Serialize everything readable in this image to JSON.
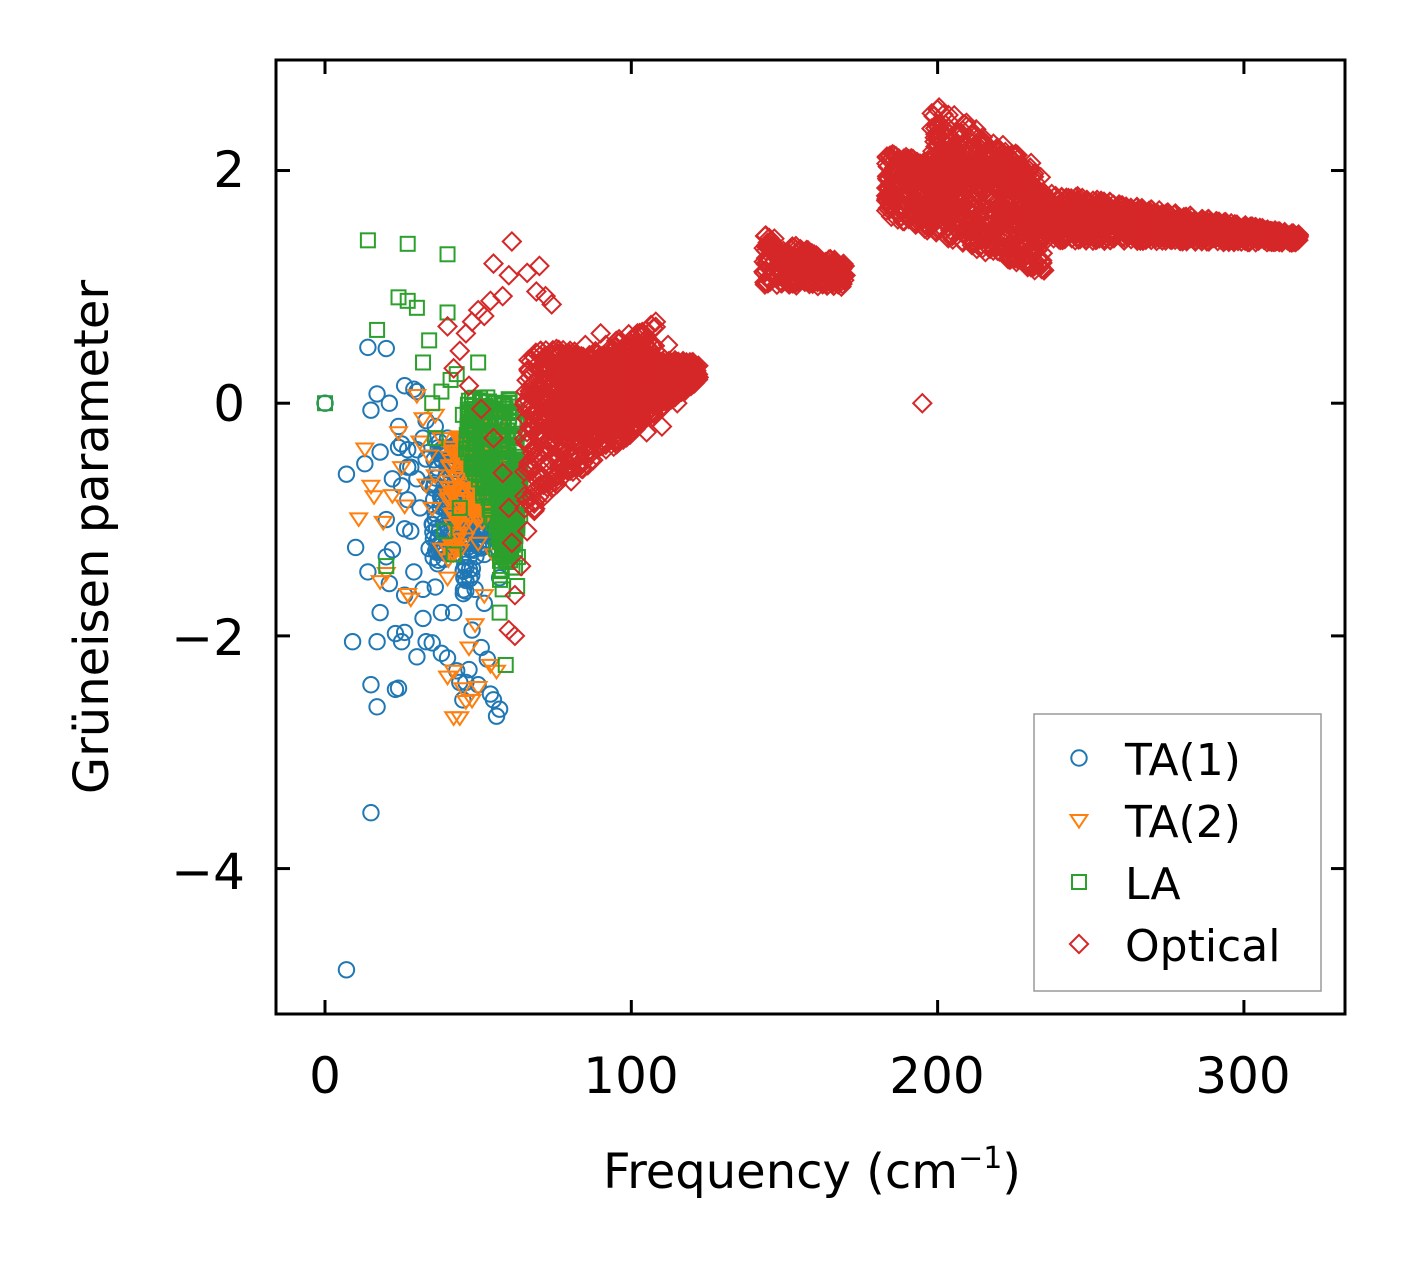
{
  "chart_data": {
    "type": "scatter",
    "title": "",
    "xlabel": "Frequency (cm",
    "xlabel_sup": "−1",
    "xlabel_suffix": ")",
    "ylabel": "Grüneisen parameter",
    "xlim": [
      -16,
      333
    ],
    "ylim": [
      -5.25,
      2.95
    ],
    "xticks": [
      0,
      100,
      200,
      300
    ],
    "xtick_labels": [
      "0",
      "100",
      "200",
      "300"
    ],
    "yticks": [
      -4,
      -2,
      0,
      2
    ],
    "ytick_labels": [
      "−4",
      "−2",
      "0",
      "2"
    ],
    "grid": false,
    "legend_position": "lower-right",
    "series": [
      {
        "name": "TA(1)",
        "color": "#1f77b4",
        "marker": "circle",
        "points": [
          [
            0,
            0
          ],
          [
            7,
            -4.87
          ],
          [
            15,
            -3.52
          ],
          [
            9,
            -2.05
          ],
          [
            15,
            -2.42
          ],
          [
            17,
            -2.61
          ],
          [
            23,
            -2.46
          ],
          [
            24,
            -2.45
          ],
          [
            7,
            -0.61
          ],
          [
            10,
            -1.24
          ],
          [
            14,
            -1.45
          ],
          [
            13,
            -0.52
          ],
          [
            15,
            -0.06
          ],
          [
            17,
            0.08
          ],
          [
            20,
            0.47
          ],
          [
            14,
            0.48
          ],
          [
            18,
            -0.42
          ],
          [
            22,
            -1.26
          ],
          [
            20,
            -1.32
          ],
          [
            17,
            -2.05
          ],
          [
            23,
            -1.98
          ],
          [
            25,
            -2.05
          ],
          [
            26,
            -1.97
          ],
          [
            21,
            -1.55
          ],
          [
            25,
            -0.71
          ],
          [
            27,
            -0.55
          ],
          [
            26,
            0.15
          ],
          [
            29,
            0.12
          ],
          [
            24,
            -0.38
          ],
          [
            27,
            -0.83
          ],
          [
            26,
            -1.08
          ],
          [
            25,
            -0.35
          ],
          [
            28,
            -0.55
          ],
          [
            26,
            -1.65
          ],
          [
            29,
            -1.45
          ],
          [
            30,
            -2.18
          ],
          [
            33,
            -2.05
          ],
          [
            35,
            -2.06
          ],
          [
            32,
            -1.85
          ],
          [
            34,
            -1.25
          ],
          [
            31,
            -0.9
          ],
          [
            30,
            -0.65
          ],
          [
            32,
            -0.3
          ],
          [
            33,
            -0.48
          ],
          [
            35,
            -1.04
          ],
          [
            36,
            -1.58
          ],
          [
            38,
            -1.8
          ],
          [
            38,
            -2.15
          ],
          [
            40,
            -2.19
          ],
          [
            37,
            -1.35
          ],
          [
            39,
            -0.75
          ],
          [
            41,
            -1.22
          ],
          [
            42,
            -1.8
          ],
          [
            43,
            -2.3
          ],
          [
            44,
            -2.4
          ],
          [
            46,
            -2.4
          ],
          [
            45,
            -2.55
          ],
          [
            47,
            -2.29
          ],
          [
            48,
            -1.95
          ],
          [
            49,
            -1.6
          ],
          [
            50,
            -2.42
          ],
          [
            51,
            -2.1
          ],
          [
            52,
            -1.72
          ],
          [
            53,
            -2.2
          ],
          [
            54,
            -2.5
          ],
          [
            55,
            -2.55
          ],
          [
            56,
            -2.69
          ],
          [
            57,
            -2.63
          ],
          [
            44,
            -1.1
          ],
          [
            46,
            -0.6
          ],
          [
            48,
            -0.9
          ],
          [
            50,
            -0.5
          ],
          [
            52,
            -1.3
          ],
          [
            53,
            -0.8
          ],
          [
            55,
            -0.45
          ],
          [
            56,
            -1.0
          ],
          [
            57,
            -1.5
          ],
          [
            58,
            -0.35
          ],
          [
            42,
            -0.7
          ],
          [
            40,
            -0.3
          ],
          [
            38,
            -0.4
          ],
          [
            36,
            -0.95
          ],
          [
            22,
            -0.65
          ],
          [
            18,
            -1.8
          ],
          [
            20,
            -1.0
          ],
          [
            28,
            -1.1
          ],
          [
            30,
            -0.4
          ],
          [
            32,
            -1.6
          ],
          [
            34,
            -0.7
          ],
          [
            36,
            -0.2
          ],
          [
            33,
            -0.15
          ],
          [
            30,
            0.1
          ],
          [
            27,
            -0.4
          ],
          [
            24,
            -0.2
          ],
          [
            21,
            0.0
          ]
        ],
        "clusters": [
          {
            "x": [
              35,
              58
            ],
            "ymin_at": [
              -1.5,
              -0.6
            ],
            "ymax_at": [
              -0.3,
              -0.4
            ],
            "n": 260
          },
          {
            "x": [
              45,
              58
            ],
            "ymin_at": [
              -1.7,
              -0.8
            ],
            "ymax_at": [
              -0.9,
              -0.2
            ],
            "n": 160
          }
        ]
      },
      {
        "name": "TA(2)",
        "color": "#ff7f0e",
        "marker": "triangle-down",
        "points": [
          [
            13,
            -0.39
          ],
          [
            11,
            -0.99
          ],
          [
            15,
            -0.71
          ],
          [
            16,
            -0.8
          ],
          [
            19,
            -1.02
          ],
          [
            18,
            -1.53
          ],
          [
            20,
            -1.46
          ],
          [
            22,
            -0.79
          ],
          [
            24,
            -0.25
          ],
          [
            25,
            -0.55
          ],
          [
            26,
            -0.88
          ],
          [
            27,
            -1.64
          ],
          [
            28,
            -1.68
          ],
          [
            30,
            0.07
          ],
          [
            32,
            -0.13
          ],
          [
            34,
            -0.45
          ],
          [
            36,
            -0.62
          ],
          [
            38,
            -1.25
          ],
          [
            40,
            -1.5
          ],
          [
            40,
            -2.35
          ],
          [
            42,
            -2.3
          ],
          [
            42,
            -2.7
          ],
          [
            44,
            -2.7
          ],
          [
            45,
            -2.45
          ],
          [
            46,
            -2.56
          ],
          [
            48,
            -2.55
          ],
          [
            50,
            -2.44
          ],
          [
            47,
            -2.1
          ],
          [
            49,
            -1.9
          ],
          [
            52,
            -1.65
          ],
          [
            54,
            -2.25
          ],
          [
            56,
            -2.3
          ],
          [
            36,
            -0.1
          ],
          [
            38,
            -0.3
          ],
          [
            41,
            -0.82
          ],
          [
            43,
            -1.0
          ],
          [
            45,
            -0.3
          ],
          [
            46,
            -0.55
          ],
          [
            48,
            -0.75
          ],
          [
            50,
            -1.2
          ],
          [
            53,
            -0.95
          ],
          [
            55,
            -1.3
          ],
          [
            57,
            -0.6
          ],
          [
            31,
            -0.33
          ],
          [
            33,
            -0.7
          ],
          [
            35,
            -0.9
          ]
        ],
        "clusters": [
          {
            "x": [
              40,
              58
            ],
            "ymin_at": [
              -1.4,
              -0.8
            ],
            "ymax_at": [
              -0.3,
              -0.1
            ],
            "n": 180
          }
        ]
      },
      {
        "name": "LA",
        "color": "#2ca02c",
        "marker": "square",
        "points": [
          [
            0,
            0
          ],
          [
            14,
            1.4
          ],
          [
            27,
            1.37
          ],
          [
            40,
            1.28
          ],
          [
            24,
            0.91
          ],
          [
            27,
            0.88
          ],
          [
            30,
            0.82
          ],
          [
            40,
            0.78
          ],
          [
            17,
            0.63
          ],
          [
            34,
            0.54
          ],
          [
            32,
            0.35
          ],
          [
            20,
            -1.4
          ],
          [
            35,
            0.0
          ],
          [
            38,
            0.1
          ],
          [
            41,
            0.2
          ],
          [
            43,
            0.25
          ],
          [
            45,
            -0.1
          ],
          [
            48,
            0.04
          ],
          [
            50,
            0.35
          ],
          [
            53,
            0.05
          ],
          [
            55,
            0.0
          ],
          [
            57,
            -1.8
          ],
          [
            58,
            -1.6
          ],
          [
            59,
            -2.25
          ],
          [
            60,
            -0.2
          ],
          [
            62,
            -0.5
          ],
          [
            63,
            -0.6
          ],
          [
            58,
            -1.0
          ],
          [
            56,
            -1.25
          ],
          [
            44,
            -0.9
          ],
          [
            42,
            -1.3
          ],
          [
            39,
            -1.1
          ],
          [
            52,
            -0.3
          ],
          [
            47,
            -0.2
          ],
          [
            36,
            -0.3
          ]
        ],
        "clusters": [
          {
            "x": [
              46,
              63
            ],
            "ymin_at": [
              -0.4,
              -1.6
            ],
            "ymax_at": [
              0.05,
              0.05
            ],
            "n": 240
          },
          {
            "x": [
              57,
              64
            ],
            "ymin_at": [
              -1.6,
              -1.0
            ],
            "ymax_at": [
              -0.8,
              -0.4
            ],
            "n": 120
          }
        ]
      },
      {
        "name": "Optical",
        "color": "#d62728",
        "marker": "diamond",
        "points": [
          [
            40,
            0.66
          ],
          [
            61,
            1.39
          ],
          [
            55,
            1.2
          ],
          [
            60,
            1.1
          ],
          [
            66,
            1.12
          ],
          [
            70,
            1.18
          ],
          [
            69,
            0.96
          ],
          [
            72,
            0.92
          ],
          [
            74,
            0.85
          ],
          [
            58,
            0.92
          ],
          [
            54,
            0.88
          ],
          [
            52,
            0.75
          ],
          [
            50,
            0.8
          ],
          [
            48,
            0.7
          ],
          [
            46,
            0.6
          ],
          [
            44,
            0.45
          ],
          [
            42,
            0.3
          ],
          [
            47,
            0.15
          ],
          [
            51,
            -0.05
          ],
          [
            55,
            -0.3
          ],
          [
            58,
            -0.6
          ],
          [
            60,
            -0.9
          ],
          [
            61,
            -1.2
          ],
          [
            62,
            -1.65
          ],
          [
            60,
            -1.95
          ],
          [
            62,
            -2.0
          ],
          [
            64,
            -1.4
          ],
          [
            66,
            -1.1
          ],
          [
            68,
            -0.85
          ],
          [
            72,
            -0.4
          ],
          [
            75,
            -0.2
          ],
          [
            80,
            -0.2
          ],
          [
            85,
            -0.3
          ],
          [
            90,
            -0.35
          ],
          [
            95,
            -0.3
          ],
          [
            100,
            -0.2
          ],
          [
            105,
            -0.25
          ],
          [
            110,
            -0.2
          ],
          [
            115,
            0.0
          ],
          [
            120,
            0.3
          ],
          [
            118,
            0.35
          ],
          [
            112,
            0.5
          ],
          [
            108,
            0.7
          ],
          [
            102,
            0.6
          ],
          [
            96,
            0.55
          ],
          [
            90,
            0.6
          ],
          [
            85,
            0.5
          ],
          [
            80,
            0.45
          ],
          [
            76,
            0.35
          ],
          [
            195,
            0.0
          ]
        ],
        "clusters": [
          {
            "x": [
              65,
              122
            ],
            "ymin_at": [
              -1.0,
              0.2
            ],
            "ymax_at": [
              0.5,
              0.35
            ],
            "n": 900
          },
          {
            "x": [
              75,
              108
            ],
            "ymin_at": [
              -0.3,
              0.0
            ],
            "ymax_at": [
              0.3,
              0.7
            ],
            "n": 400
          },
          {
            "x": [
              143,
              170
            ],
            "ymin_at": [
              1.02,
              1.0
            ],
            "ymax_at": [
              1.45,
              1.2
            ],
            "n": 260
          },
          {
            "x": [
              183,
              235
            ],
            "ymin_at": [
              1.62,
              1.1
            ],
            "ymax_at": [
              2.15,
              1.95
            ],
            "n": 700
          },
          {
            "x": [
              198,
              232
            ],
            "ymin_at": [
              2.0,
              1.75
            ],
            "ymax_at": [
              2.6,
              2.05
            ],
            "n": 260
          },
          {
            "x": [
              230,
              318
            ],
            "ymin_at": [
              1.4,
              1.38
            ],
            "ymax_at": [
              1.85,
              1.45
            ],
            "n": 1000
          }
        ]
      }
    ]
  }
}
